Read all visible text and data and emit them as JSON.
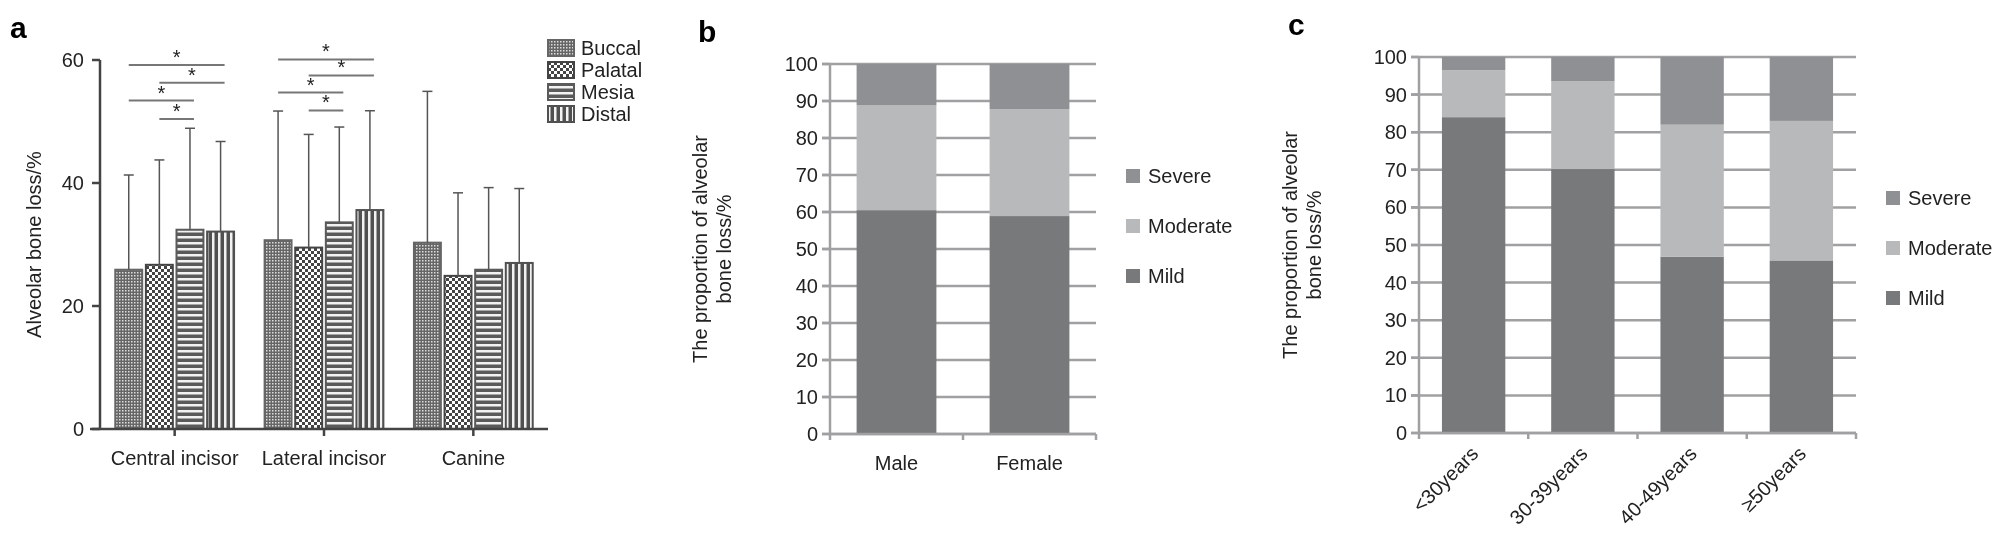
{
  "chart_data": [
    {
      "type": "bar",
      "title": "a",
      "ylabel": "Alveolar bone loss/%",
      "categories": [
        "Central incisor",
        "Lateral incisor",
        "Canine"
      ],
      "ylim": [
        0,
        60
      ],
      "yticks": [
        0,
        20,
        40,
        60
      ],
      "grid": false,
      "legend": "top right",
      "series": [
        {
          "name": "Buccal",
          "color": "#666666",
          "values": [
            25.9,
            30.7,
            30.3
          ],
          "errors": [
            [
              25.9,
              41.3
            ],
            [
              30.7,
              51.7
            ],
            [
              30.3,
              54.9
            ]
          ]
        },
        {
          "name": "Palatal",
          "color": "#444444",
          "values": [
            26.7,
            29.5,
            24.9
          ],
          "errors": [
            [
              26.7,
              43.75
            ],
            [
              29.5,
              47.9
            ],
            [
              24.9,
              38.4
            ]
          ]
        },
        {
          "name": "Mesia",
          "color": "#5a5a5a",
          "values": [
            32.4,
            33.6,
            25.9
          ],
          "errors": [
            [
              32.4,
              48.9
            ],
            [
              33.6,
              49.1
            ],
            [
              25.9,
              39.25
            ]
          ]
        },
        {
          "name": "Distal",
          "color": "#505050",
          "values": [
            32.1,
            35.6,
            27.0
          ],
          "errors": [
            [
              32.1,
              46.75
            ],
            [
              35.6,
              51.75
            ],
            [
              27.0,
              39.1
            ]
          ]
        }
      ],
      "annotations": [
        "*",
        "*",
        "*",
        "*",
        "*",
        "*",
        "*",
        "*"
      ]
    },
    {
      "type": "bar",
      "title": "b",
      "ylabel": "The proportion of alveolar bone loss/%",
      "categories": [
        "Male",
        "Female"
      ],
      "stacked": true,
      "ylim": [
        0,
        100
      ],
      "yticks": [
        0,
        10,
        20,
        30,
        40,
        50,
        60,
        70,
        80,
        90,
        100
      ],
      "grid": "y",
      "legend": "right",
      "series": [
        {
          "name": "Mild",
          "color": "#78797b",
          "values": [
            60.5,
            58.9
          ]
        },
        {
          "name": "Moderate",
          "color": "#b8b9bb",
          "values": [
            28.3,
            28.9
          ]
        },
        {
          "name": "Severe",
          "color": "#8f9093",
          "values": [
            11.2,
            12.2
          ]
        }
      ]
    },
    {
      "type": "bar",
      "title": "c",
      "ylabel": "The proportion of alveolar bone loss/%",
      "categories": [
        "<30years",
        "30-39years",
        "40-49years",
        "≥50years"
      ],
      "stacked": true,
      "ylim": [
        0,
        100
      ],
      "yticks": [
        0,
        10,
        20,
        30,
        40,
        50,
        60,
        70,
        80,
        90,
        100
      ],
      "grid": "y",
      "legend": "right",
      "series": [
        {
          "name": "Mild",
          "color": "#78797b",
          "values": [
            84.0,
            70.2,
            46.9,
            45.9
          ]
        },
        {
          "name": "Moderate",
          "color": "#b8b9bb",
          "values": [
            12.5,
            23.4,
            35.1,
            37.1
          ]
        },
        {
          "name": "Severe",
          "color": "#8f9093",
          "values": [
            3.5,
            6.4,
            18.0,
            17.0
          ]
        }
      ]
    }
  ]
}
